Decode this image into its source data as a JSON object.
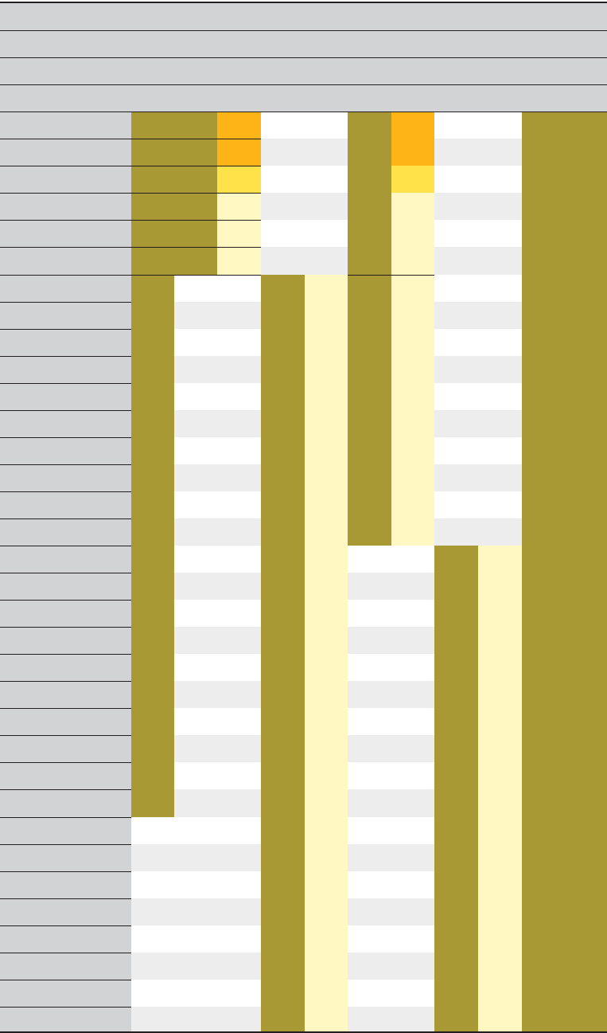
{
  "palette": {
    "header_gray": "#d1d3d4",
    "row_gray": "#ededed",
    "row_white": "#ffffff",
    "olive": "#a89935",
    "orange": "#fcb416",
    "yellow": "#ffe24a",
    "cream": "#fff8c2",
    "rule": "#231f20"
  }
}
